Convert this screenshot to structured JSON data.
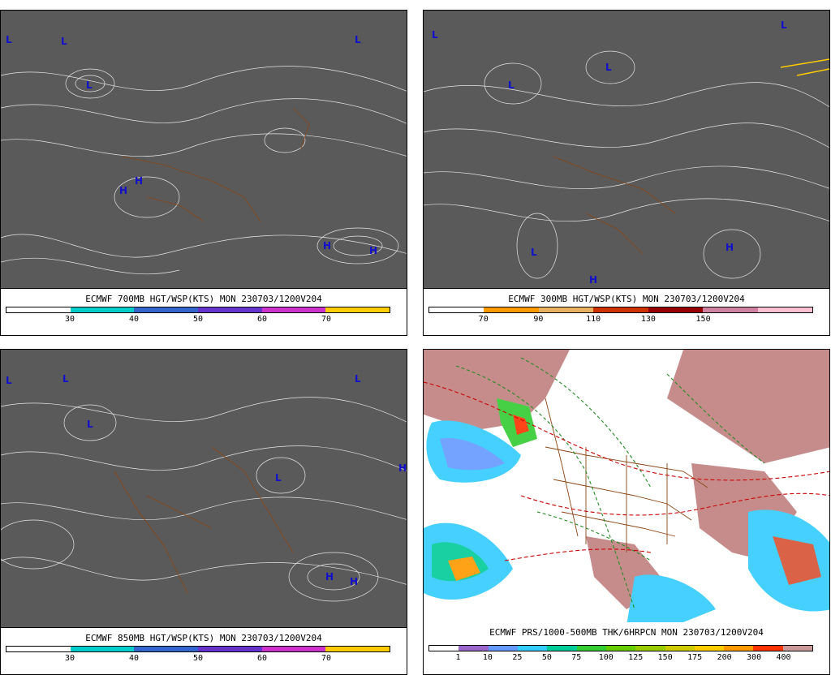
{
  "panels": {
    "p700": {
      "title": "ECMWF 700MB HGT/WSP(KTS) MON 230703/1200V204",
      "ticks": [
        "30",
        "40",
        "50",
        "60",
        "70"
      ],
      "colors": [
        "#ffffff",
        "#00cccc",
        "#3366cc",
        "#6633cc",
        "#cc33cc",
        "#ffcc00"
      ]
    },
    "p300": {
      "title": "ECMWF 300MB HGT/WSP(KTS) MON 230703/1200V204",
      "ticks": [
        "70",
        "90",
        "110",
        "130",
        "150"
      ],
      "colors": [
        "#ffffff",
        "#ff9900",
        "#e8b060",
        "#cc3300",
        "#990000",
        "#d080a0",
        "#ffc0d0"
      ]
    },
    "p850": {
      "title": "ECMWF 850MB HGT/WSP(KTS) MON 230703/1200V204",
      "ticks": [
        "30",
        "40",
        "50",
        "60",
        "70"
      ],
      "colors": [
        "#ffffff",
        "#00cccc",
        "#3366cc",
        "#6633cc",
        "#cc33cc",
        "#ffcc00"
      ]
    },
    "pprs": {
      "title": "ECMWF PRS/1000-500MB THK/6HRPCN MON 230703/1200V204",
      "ticks": [
        "1",
        "10",
        "25",
        "50",
        "75",
        "100",
        "125",
        "150",
        "175",
        "200",
        "300",
        "400"
      ],
      "colors": [
        "#ffffff",
        "#9966cc",
        "#6699ff",
        "#33ccff",
        "#00cc99",
        "#33cc33",
        "#66cc00",
        "#99cc00",
        "#cccc00",
        "#ffcc00",
        "#ff9900",
        "#ff3300",
        "#cc9999"
      ]
    }
  },
  "icons": {
    "low": "L",
    "high": "H"
  },
  "colors": {
    "streamline_bg": "#5a5a5a",
    "streamline": "#ffffff",
    "border": "#8b4513",
    "marker": "#1010cc",
    "thickness": "#cc0000",
    "pressure": "#228b22",
    "land": "#c08080"
  }
}
